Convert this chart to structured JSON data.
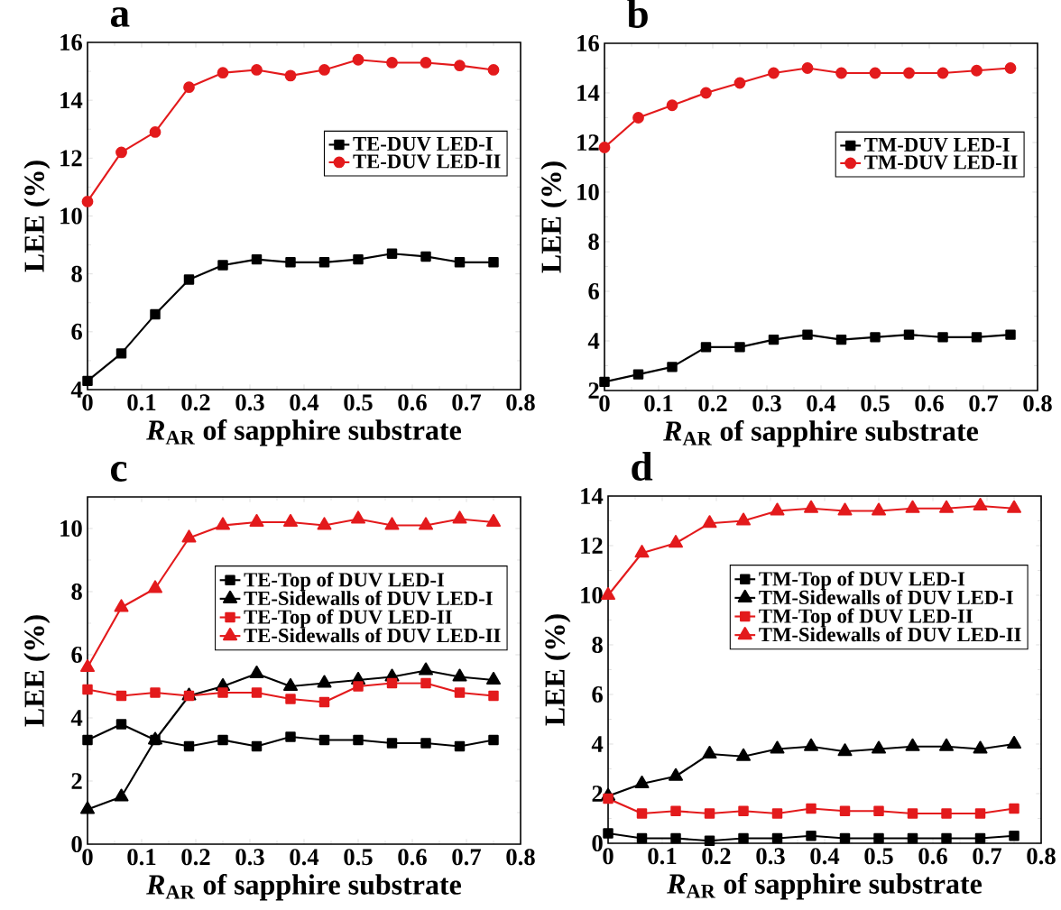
{
  "chart_data": [
    {
      "type": "line",
      "title": "a",
      "xlabel": "*R*$_{AR}$ of sapphire substrate",
      "ylabel": "LEE (%)",
      "xlim": [
        0,
        0.8
      ],
      "xticks": [
        0,
        0.1,
        0.2,
        0.3,
        0.4,
        0.5,
        0.6,
        0.7,
        0.8
      ],
      "ylim": [
        4,
        16
      ],
      "yticks": [
        4,
        6,
        8,
        10,
        12,
        14,
        16
      ],
      "legend": "right",
      "line_style": "solid",
      "x": [
        0,
        0.0625,
        0.125,
        0.1875,
        0.25,
        0.3125,
        0.375,
        0.4375,
        0.5,
        0.5625,
        0.625,
        0.6875,
        0.75
      ],
      "series": [
        {
          "name": "TE-DUV LED-I",
          "color": "#000000",
          "marker": "square",
          "values": [
            4.3,
            5.25,
            6.6,
            7.8,
            8.3,
            8.5,
            8.4,
            8.4,
            8.5,
            8.7,
            8.6,
            8.4,
            8.4
          ]
        },
        {
          "name": "TE-DUV LED-II",
          "color": "#e31a1c",
          "marker": "circle",
          "values": [
            10.5,
            12.2,
            12.9,
            14.45,
            14.95,
            15.05,
            14.85,
            15.05,
            15.4,
            15.3,
            15.3,
            15.2,
            15.05
          ]
        }
      ]
    },
    {
      "type": "line",
      "title": "b",
      "xlabel": "*R*$_{AR}$ of sapphire substrate",
      "ylabel": "LEE (%)",
      "xlim": [
        0,
        0.8
      ],
      "xticks": [
        0,
        0.1,
        0.2,
        0.3,
        0.4,
        0.5,
        0.6,
        0.7,
        0.8
      ],
      "ylim": [
        2,
        16
      ],
      "yticks": [
        2,
        4,
        6,
        8,
        10,
        12,
        14,
        16
      ],
      "legend": "right",
      "line_style": "solid",
      "x": [
        0,
        0.0625,
        0.125,
        0.1875,
        0.25,
        0.3125,
        0.375,
        0.4375,
        0.5,
        0.5625,
        0.625,
        0.6875,
        0.75
      ],
      "series": [
        {
          "name": "TM-DUV LED-I",
          "color": "#000000",
          "marker": "square",
          "values": [
            2.35,
            2.65,
            2.95,
            3.75,
            3.75,
            4.05,
            4.25,
            4.05,
            4.15,
            4.25,
            4.15,
            4.15,
            4.25
          ]
        },
        {
          "name": "TM-DUV LED-II",
          "color": "#e31a1c",
          "marker": "circle",
          "values": [
            11.8,
            13.0,
            13.5,
            14.0,
            14.4,
            14.8,
            15.0,
            14.8,
            14.8,
            14.8,
            14.8,
            14.9,
            15.0
          ]
        }
      ]
    },
    {
      "type": "line",
      "title": "c",
      "xlabel": "*R*$_{AR}$ of sapphire substrate",
      "ylabel": "LEE (%)",
      "xlim": [
        0,
        0.8
      ],
      "xticks": [
        0,
        0.1,
        0.2,
        0.3,
        0.4,
        0.5,
        0.6,
        0.7,
        0.8
      ],
      "ylim": [
        0,
        11
      ],
      "yticks": [
        0,
        2,
        4,
        6,
        8,
        10
      ],
      "legend": "right",
      "line_style": "solid",
      "x": [
        0,
        0.0625,
        0.125,
        0.1875,
        0.25,
        0.3125,
        0.375,
        0.4375,
        0.5,
        0.5625,
        0.625,
        0.6875,
        0.75
      ],
      "series": [
        {
          "name": "TE-Top of DUV LED-I",
          "color": "#000000",
          "marker": "square",
          "values": [
            3.3,
            3.8,
            3.3,
            3.1,
            3.3,
            3.1,
            3.4,
            3.3,
            3.3,
            3.2,
            3.2,
            3.1,
            3.3
          ]
        },
        {
          "name": "TE-Sidewalls of DUV LED-I",
          "color": "#000000",
          "marker": "triangle",
          "values": [
            1.1,
            1.5,
            3.3,
            4.7,
            5.0,
            5.4,
            5.0,
            5.1,
            5.2,
            5.3,
            5.5,
            5.3,
            5.2
          ]
        },
        {
          "name": "TE-Top of DUV LED-II",
          "color": "#e31a1c",
          "marker": "square",
          "values": [
            4.9,
            4.7,
            4.8,
            4.7,
            4.8,
            4.8,
            4.6,
            4.5,
            5.0,
            5.1,
            5.1,
            4.8,
            4.7
          ]
        },
        {
          "name": "TE-Sidewalls of DUV LED-II",
          "color": "#e31a1c",
          "marker": "triangle",
          "values": [
            5.6,
            7.5,
            8.1,
            9.7,
            10.1,
            10.2,
            10.2,
            10.1,
            10.3,
            10.1,
            10.1,
            10.3,
            10.2
          ]
        }
      ]
    },
    {
      "type": "line",
      "title": "d",
      "xlabel": "*R*$_{AR}$ of sapphire substrate",
      "ylabel": "LEE (%)",
      "xlim": [
        0,
        0.8
      ],
      "xticks": [
        0,
        0.1,
        0.2,
        0.3,
        0.4,
        0.5,
        0.6,
        0.7,
        0.8
      ],
      "ylim": [
        0,
        14
      ],
      "yticks": [
        0,
        2,
        4,
        6,
        8,
        10,
        12,
        14
      ],
      "legend": "right",
      "line_style": "solid",
      "x": [
        0,
        0.0625,
        0.125,
        0.1875,
        0.25,
        0.3125,
        0.375,
        0.4375,
        0.5,
        0.5625,
        0.625,
        0.6875,
        0.75
      ],
      "series": [
        {
          "name": "TM-Top of DUV LED-I",
          "color": "#000000",
          "marker": "square",
          "values": [
            0.4,
            0.2,
            0.2,
            0.1,
            0.2,
            0.2,
            0.3,
            0.2,
            0.2,
            0.2,
            0.2,
            0.2,
            0.3
          ]
        },
        {
          "name": "TM-Sidewalls of DUV LED-I",
          "color": "#000000",
          "marker": "triangle",
          "values": [
            1.9,
            2.4,
            2.7,
            3.6,
            3.5,
            3.8,
            3.9,
            3.7,
            3.8,
            3.9,
            3.9,
            3.8,
            4.0
          ]
        },
        {
          "name": "TM-Top of DUV LED-II",
          "color": "#e31a1c",
          "marker": "square",
          "values": [
            1.8,
            1.2,
            1.3,
            1.2,
            1.3,
            1.2,
            1.4,
            1.3,
            1.3,
            1.2,
            1.2,
            1.2,
            1.4
          ]
        },
        {
          "name": "TM-Sidewalls of DUV LED-II",
          "color": "#e31a1c",
          "marker": "triangle",
          "values": [
            10.0,
            11.7,
            12.1,
            12.9,
            13.0,
            13.4,
            13.5,
            13.4,
            13.4,
            13.5,
            13.5,
            13.6,
            13.5
          ]
        }
      ]
    }
  ]
}
